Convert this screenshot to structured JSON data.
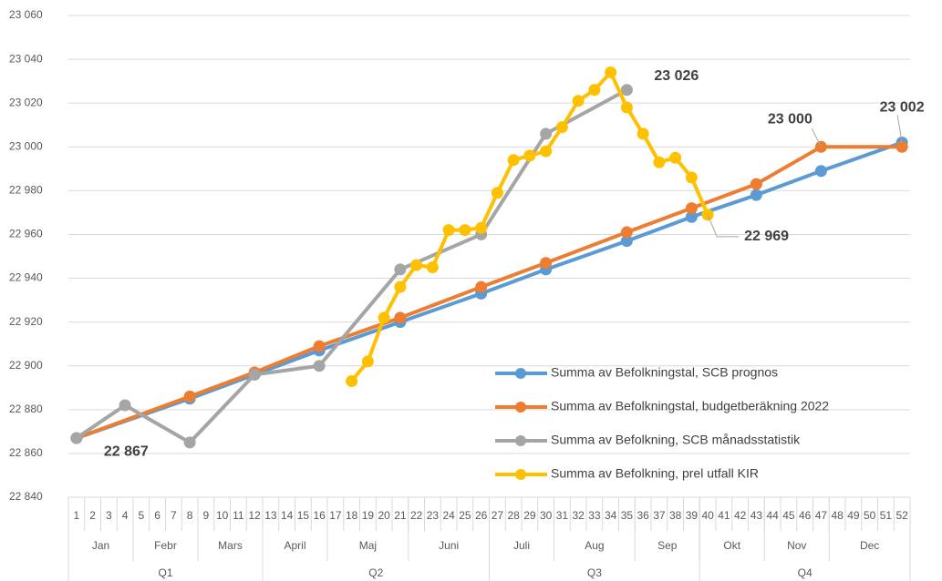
{
  "chart_data": {
    "type": "line",
    "categories": [
      "1",
      "2",
      "3",
      "4",
      "5",
      "6",
      "7",
      "8",
      "9",
      "10",
      "11",
      "12",
      "13",
      "14",
      "15",
      "16",
      "17",
      "18",
      "19",
      "20",
      "21",
      "22",
      "23",
      "24",
      "25",
      "26",
      "27",
      "28",
      "29",
      "30",
      "31",
      "32",
      "33",
      "34",
      "35",
      "36",
      "37",
      "38",
      "39",
      "40",
      "41",
      "42",
      "43",
      "44",
      "45",
      "46",
      "47",
      "48",
      "49",
      "50",
      "51",
      "52"
    ],
    "months": [
      {
        "label": "Jan",
        "span": 4
      },
      {
        "label": "Febr",
        "span": 4
      },
      {
        "label": "Mars",
        "span": 4
      },
      {
        "label": "April",
        "span": 4
      },
      {
        "label": "Maj",
        "span": 5
      },
      {
        "label": "Juni",
        "span": 5
      },
      {
        "label": "Juli",
        "span": 4
      },
      {
        "label": "Aug",
        "span": 5
      },
      {
        "label": "Sep",
        "span": 4
      },
      {
        "label": "Okt",
        "span": 4
      },
      {
        "label": "Nov",
        "span": 4
      },
      {
        "label": "Dec",
        "span": 5
      }
    ],
    "quarters": [
      {
        "label": "Q1",
        "span": 12
      },
      {
        "label": "Q2",
        "span": 14
      },
      {
        "label": "Q3",
        "span": 13
      },
      {
        "label": "Q4",
        "span": 13
      }
    ],
    "series": [
      {
        "name": "Summa av Befolkningstal, SCB prognos",
        "color": "#5b9bd5",
        "values": [
          22867,
          null,
          null,
          null,
          null,
          null,
          null,
          22885,
          null,
          null,
          null,
          22896,
          null,
          null,
          null,
          22907,
          null,
          null,
          null,
          null,
          22920,
          null,
          null,
          null,
          null,
          22933,
          null,
          null,
          null,
          22944,
          null,
          null,
          null,
          null,
          22957,
          null,
          null,
          null,
          22968,
          null,
          null,
          null,
          22978,
          null,
          null,
          null,
          22989,
          null,
          null,
          null,
          null,
          23002
        ],
        "value_labels": [
          null,
          null,
          null,
          null,
          null,
          null,
          null,
          null,
          null,
          null,
          null,
          null,
          null,
          null,
          null,
          null,
          null,
          null,
          null,
          null,
          null,
          null,
          null,
          null,
          null,
          null,
          null,
          null,
          null,
          null,
          null,
          null,
          null,
          null,
          null,
          null,
          null,
          null,
          null,
          null,
          null,
          null,
          null,
          null,
          null,
          null,
          null,
          null,
          null,
          null,
          null,
          "23 002"
        ]
      },
      {
        "name": "Summa av Befolkningstal, budgetberäkning 2022",
        "color": "#ed7d31",
        "values": [
          22867,
          null,
          null,
          null,
          null,
          null,
          null,
          22886,
          null,
          null,
          null,
          22897,
          null,
          null,
          null,
          22909,
          null,
          null,
          null,
          null,
          22922,
          null,
          null,
          null,
          null,
          22936,
          null,
          null,
          null,
          22947,
          null,
          null,
          null,
          null,
          22961,
          null,
          null,
          null,
          22972,
          null,
          null,
          null,
          22983,
          null,
          null,
          null,
          23000,
          null,
          null,
          null,
          null,
          23000
        ],
        "value_labels": [
          null,
          null,
          null,
          null,
          null,
          null,
          null,
          null,
          null,
          null,
          null,
          null,
          null,
          null,
          null,
          null,
          null,
          null,
          null,
          null,
          null,
          null,
          null,
          null,
          null,
          null,
          null,
          null,
          null,
          null,
          null,
          null,
          null,
          null,
          null,
          null,
          null,
          null,
          null,
          null,
          null,
          null,
          null,
          null,
          null,
          null,
          "23 000",
          null,
          null,
          null,
          null,
          null
        ]
      },
      {
        "name": "Summa av Befolkning, SCB månadsstatistik",
        "color": "#a5a5a5",
        "values": [
          22867,
          null,
          null,
          22882,
          null,
          null,
          null,
          22865,
          null,
          null,
          null,
          22896,
          null,
          null,
          null,
          22900,
          null,
          null,
          null,
          null,
          22944,
          null,
          null,
          null,
          null,
          22960,
          null,
          null,
          null,
          23006,
          null,
          null,
          null,
          null,
          23026,
          null,
          null,
          null,
          null,
          null,
          null,
          null,
          null,
          null,
          null,
          null,
          null,
          null,
          null,
          null,
          null,
          null
        ],
        "value_labels": [
          "22 867",
          null,
          null,
          null,
          null,
          null,
          null,
          null,
          null,
          null,
          null,
          null,
          null,
          null,
          null,
          null,
          null,
          null,
          null,
          null,
          null,
          null,
          null,
          null,
          null,
          null,
          null,
          null,
          null,
          null,
          null,
          null,
          null,
          null,
          "23 026",
          null,
          null,
          null,
          null,
          null,
          null,
          null,
          null,
          null,
          null,
          null,
          null,
          null,
          null,
          null,
          null,
          null
        ]
      },
      {
        "name": "Summa av Befolkning, prel utfall KIR",
        "color": "#ffc000",
        "values": [
          null,
          null,
          null,
          null,
          null,
          null,
          null,
          null,
          null,
          null,
          null,
          null,
          null,
          null,
          null,
          null,
          null,
          22893,
          22902,
          22922,
          22936,
          22946,
          22945,
          22962,
          22962,
          22963,
          22979,
          22994,
          22996,
          22998,
          23009,
          23021,
          23026,
          23034,
          23018,
          23006,
          22993,
          22995,
          22986,
          22969,
          null,
          null,
          null,
          null,
          null,
          null,
          null,
          null,
          null,
          null,
          null,
          null
        ],
        "value_labels": [
          null,
          null,
          null,
          null,
          null,
          null,
          null,
          null,
          null,
          null,
          null,
          null,
          null,
          null,
          null,
          null,
          null,
          null,
          null,
          null,
          null,
          null,
          null,
          null,
          null,
          null,
          null,
          null,
          null,
          null,
          null,
          null,
          null,
          null,
          null,
          null,
          null,
          null,
          null,
          "22 969",
          null,
          null,
          null,
          null,
          null,
          null,
          null,
          null,
          null,
          null,
          null,
          null
        ]
      }
    ],
    "ylim": [
      22840,
      23060
    ],
    "yticks": [
      {
        "value": 22840,
        "label": "22 840"
      },
      {
        "value": 22860,
        "label": "22 860"
      },
      {
        "value": 22880,
        "label": "22 880"
      },
      {
        "value": 22900,
        "label": "22 900"
      },
      {
        "value": 22920,
        "label": "22 920"
      },
      {
        "value": 22940,
        "label": "22 940"
      },
      {
        "value": 22960,
        "label": "22 960"
      },
      {
        "value": 22980,
        "label": "22 980"
      },
      {
        "value": 23000,
        "label": "23 000"
      },
      {
        "value": 23020,
        "label": "23 020"
      },
      {
        "value": 23040,
        "label": "23 040"
      },
      {
        "value": 23060,
        "label": "23 060"
      }
    ],
    "grid": true,
    "legend": "lower right"
  }
}
